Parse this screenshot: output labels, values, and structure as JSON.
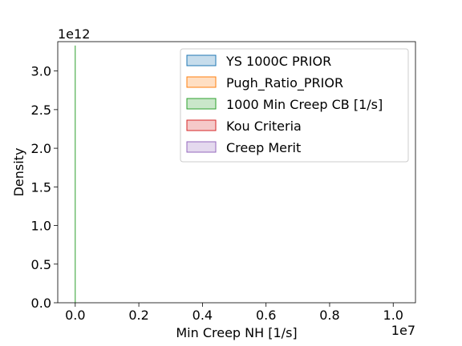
{
  "chart_data": {
    "type": "area",
    "xlabel": "Min Creep NH [1/s]",
    "ylabel": "Density",
    "x_offset_text": "1e7",
    "y_offset_text": "1e12",
    "x_scale": 10000000,
    "y_scale": 1000000000000,
    "xlim": [
      -0.055,
      1.07
    ],
    "ylim": [
      0,
      3.38
    ],
    "xticks": [
      0.0,
      0.2,
      0.4,
      0.6,
      0.8,
      1.0
    ],
    "xtick_labels": [
      "0.0",
      "0.2",
      "0.4",
      "0.6",
      "0.8",
      "1.0"
    ],
    "yticks": [
      0.0,
      0.5,
      1.0,
      1.5,
      2.0,
      2.5,
      3.0
    ],
    "ytick_labels": [
      "0.0",
      "0.5",
      "1.0",
      "1.5",
      "2.0",
      "2.5",
      "3.0"
    ],
    "grid": false,
    "legend_position": "upper-right",
    "series": [
      {
        "name": "YS 1000C PRIOR",
        "color": "#1f77b4",
        "peak_x": 0.0,
        "peak_density": 0
      },
      {
        "name": "Pugh_Ratio_PRIOR",
        "color": "#ff7f0e",
        "peak_x": 0.0,
        "peak_density": 0
      },
      {
        "name": "1000 Min Creep CB [1/s]",
        "color": "#2ca02c",
        "peak_x": 0.0,
        "peak_density": 3.33
      },
      {
        "name": "Kou Criteria",
        "color": "#d62728",
        "peak_x": 0.0,
        "peak_density": 0
      },
      {
        "name": "Creep Merit",
        "color": "#9467bd",
        "peak_x": 0.0,
        "peak_density": 0
      }
    ]
  }
}
